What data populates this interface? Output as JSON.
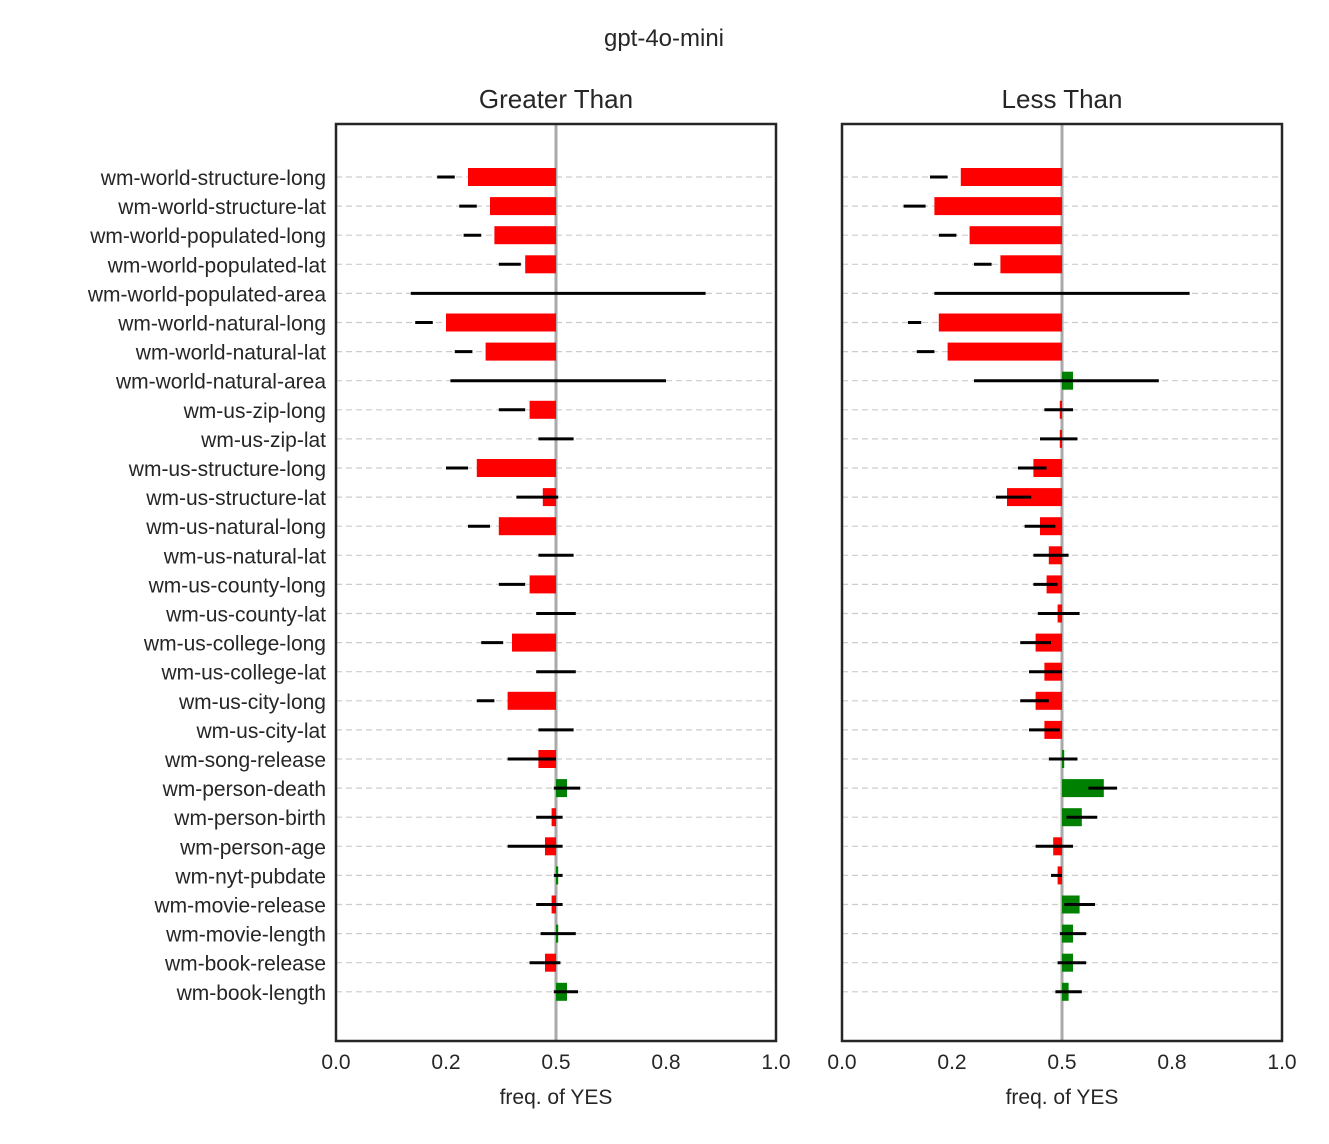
{
  "suptitle": "gpt-4o-mini",
  "chart_data": [
    {
      "type": "bar",
      "orientation": "horizontal",
      "title": "Greater Than",
      "xlabel": "freq. of YES",
      "xlim": [
        0.0,
        1.0
      ],
      "xticks": [
        "0.0",
        "0.2",
        "0.5",
        "0.8",
        "1.0"
      ],
      "xtick_values": [
        0.0,
        0.25,
        0.5,
        0.75,
        1.0
      ],
      "reference_line": 0.5,
      "grid": "horizontal dashed",
      "show_category_labels": true,
      "categories": [
        "wm-world-structure-long",
        "wm-world-structure-lat",
        "wm-world-populated-long",
        "wm-world-populated-lat",
        "wm-world-populated-area",
        "wm-world-natural-long",
        "wm-world-natural-lat",
        "wm-world-natural-area",
        "wm-us-zip-long",
        "wm-us-zip-lat",
        "wm-us-structure-long",
        "wm-us-structure-lat",
        "wm-us-natural-long",
        "wm-us-natural-lat",
        "wm-us-county-long",
        "wm-us-county-lat",
        "wm-us-college-long",
        "wm-us-college-lat",
        "wm-us-city-long",
        "wm-us-city-lat",
        "wm-song-release",
        "wm-person-death",
        "wm-person-birth",
        "wm-person-age",
        "wm-nyt-pubdate",
        "wm-movie-release",
        "wm-movie-length",
        "wm-book-release",
        "wm-book-length"
      ],
      "values": [
        0.3,
        0.35,
        0.36,
        0.43,
        0.5,
        0.25,
        0.34,
        0.5,
        0.44,
        0.5,
        0.32,
        0.47,
        0.37,
        0.5,
        0.44,
        0.5,
        0.4,
        0.5,
        0.39,
        0.5,
        0.46,
        0.525,
        0.49,
        0.475,
        0.505,
        0.49,
        0.505,
        0.475,
        0.525
      ],
      "error_low": [
        0.23,
        0.28,
        0.29,
        0.37,
        0.17,
        0.18,
        0.27,
        0.26,
        0.37,
        0.46,
        0.25,
        0.41,
        0.3,
        0.46,
        0.37,
        0.455,
        0.33,
        0.455,
        0.32,
        0.46,
        0.39,
        0.495,
        0.455,
        0.39,
        0.495,
        0.455,
        0.465,
        0.44,
        0.495
      ],
      "error_high": [
        0.27,
        0.32,
        0.33,
        0.42,
        0.84,
        0.22,
        0.31,
        0.75,
        0.43,
        0.54,
        0.3,
        0.505,
        0.35,
        0.54,
        0.43,
        0.545,
        0.38,
        0.545,
        0.36,
        0.54,
        0.5,
        0.555,
        0.515,
        0.515,
        0.515,
        0.515,
        0.545,
        0.51,
        0.55
      ],
      "colors": {
        "negative": "#ff0000",
        "positive": "#008000"
      }
    },
    {
      "type": "bar",
      "orientation": "horizontal",
      "title": "Less Than",
      "xlabel": "freq. of YES",
      "xlim": [
        0.0,
        1.0
      ],
      "xticks": [
        "0.0",
        "0.2",
        "0.5",
        "0.8",
        "1.0"
      ],
      "xtick_values": [
        0.0,
        0.25,
        0.5,
        0.75,
        1.0
      ],
      "reference_line": 0.5,
      "grid": "horizontal dashed",
      "show_category_labels": false,
      "categories": [
        "wm-world-structure-long",
        "wm-world-structure-lat",
        "wm-world-populated-long",
        "wm-world-populated-lat",
        "wm-world-populated-area",
        "wm-world-natural-long",
        "wm-world-natural-lat",
        "wm-world-natural-area",
        "wm-us-zip-long",
        "wm-us-zip-lat",
        "wm-us-structure-long",
        "wm-us-structure-lat",
        "wm-us-natural-long",
        "wm-us-natural-lat",
        "wm-us-county-long",
        "wm-us-county-lat",
        "wm-us-college-long",
        "wm-us-college-lat",
        "wm-us-city-long",
        "wm-us-city-lat",
        "wm-song-release",
        "wm-person-death",
        "wm-person-birth",
        "wm-person-age",
        "wm-nyt-pubdate",
        "wm-movie-release",
        "wm-movie-length",
        "wm-book-release",
        "wm-book-length"
      ],
      "values": [
        0.27,
        0.21,
        0.29,
        0.36,
        0.5,
        0.22,
        0.24,
        0.525,
        0.495,
        0.495,
        0.435,
        0.375,
        0.45,
        0.47,
        0.465,
        0.49,
        0.44,
        0.46,
        0.44,
        0.46,
        0.505,
        0.595,
        0.545,
        0.48,
        0.49,
        0.54,
        0.525,
        0.525,
        0.515
      ],
      "error_low": [
        0.2,
        0.14,
        0.22,
        0.3,
        0.21,
        0.15,
        0.17,
        0.3,
        0.46,
        0.45,
        0.4,
        0.35,
        0.415,
        0.435,
        0.435,
        0.445,
        0.405,
        0.425,
        0.405,
        0.425,
        0.47,
        0.56,
        0.51,
        0.44,
        0.475,
        0.505,
        0.495,
        0.49,
        0.485
      ],
      "error_high": [
        0.24,
        0.19,
        0.26,
        0.34,
        0.79,
        0.18,
        0.21,
        0.72,
        0.525,
        0.535,
        0.465,
        0.43,
        0.485,
        0.515,
        0.49,
        0.54,
        0.475,
        0.5,
        0.47,
        0.495,
        0.535,
        0.625,
        0.58,
        0.525,
        0.5,
        0.575,
        0.555,
        0.555,
        0.545
      ],
      "colors": {
        "negative": "#ff0000",
        "positive": "#008000"
      }
    }
  ]
}
